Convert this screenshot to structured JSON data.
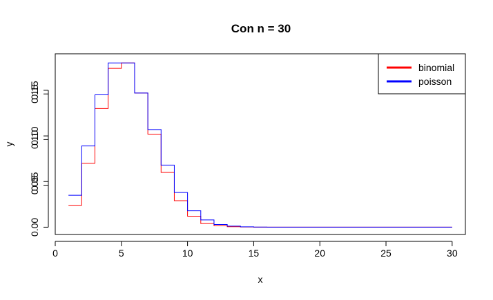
{
  "chart_data": {
    "type": "line",
    "step": true,
    "title": "Con n = 30",
    "xlabel": "x",
    "ylabel": "y",
    "xlim": [
      0,
      31
    ],
    "ylim": [
      -0.008,
      0.19
    ],
    "x_ticks": [
      0,
      5,
      10,
      15,
      20,
      25,
      30
    ],
    "x_tick_labels": [
      "0",
      "5",
      "10",
      "15",
      "20",
      "25",
      "30"
    ],
    "y_ticks": [
      0.0,
      0.05,
      0.1,
      0.15
    ],
    "y_tick_labels": [
      "0.00",
      "0.05",
      "0.10",
      "0.15"
    ],
    "y_ticks_overprint": [
      0.046,
      0.096,
      0.146
    ],
    "y_ticks_overprint_labels": [
      "0.05",
      "0.10",
      "0.15"
    ],
    "legend_position": "top-right",
    "grid": false,
    "x": [
      1,
      2,
      3,
      4,
      5,
      6,
      7,
      8,
      9,
      10,
      11,
      12,
      13,
      14,
      15,
      16,
      17,
      18,
      19,
      20,
      21,
      22,
      23,
      24,
      25,
      26,
      27,
      28,
      29,
      30
    ],
    "series": [
      {
        "name": "binomial",
        "color": "#ff0000",
        "values": [
          0.024,
          0.07,
          0.13,
          0.174,
          0.18,
          0.147,
          0.102,
          0.06,
          0.029,
          0.012,
          0.004,
          0.0015,
          0.0005,
          0.0002,
          0,
          0,
          0,
          0,
          0,
          0,
          0,
          0,
          0,
          0,
          0,
          0,
          0,
          0,
          0,
          0
        ]
      },
      {
        "name": "poisson",
        "color": "#0000ff",
        "values": [
          0.035,
          0.089,
          0.145,
          0.18,
          0.18,
          0.147,
          0.107,
          0.068,
          0.038,
          0.018,
          0.008,
          0.003,
          0.0012,
          0.0004,
          0.0001,
          0,
          0,
          0,
          0,
          0,
          0,
          0,
          0,
          0,
          0,
          0,
          0,
          0,
          0,
          0
        ]
      }
    ]
  }
}
